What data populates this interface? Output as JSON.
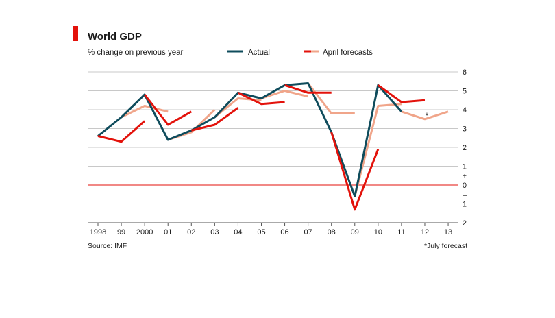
{
  "chart_data": {
    "type": "line",
    "title": "World GDP",
    "subtitle": "% change on previous year",
    "source": "Source: IMF",
    "footnote": "*July forecast",
    "forecast_marker": "*",
    "colors": {
      "actual": "#0f4c5c",
      "april_forecast_old": "#e3120b",
      "april_forecast_new": "#f0a58a",
      "title_accent": "#e3120b",
      "zero_line": "#e3120b",
      "grid": "#c8c8c8"
    },
    "ylim": [
      -2,
      6
    ],
    "y_ticks": [
      {
        "value": 6,
        "label": "6"
      },
      {
        "value": 5,
        "label": "5"
      },
      {
        "value": 4,
        "label": "4"
      },
      {
        "value": 3,
        "label": "3"
      },
      {
        "value": 2,
        "label": "2"
      },
      {
        "value": 1,
        "label": "1"
      },
      {
        "value": 0,
        "label": "0"
      },
      {
        "value": -1,
        "label": "1"
      },
      {
        "value": -2,
        "label": "2"
      }
    ],
    "y_sign_labels": {
      "plus": "+",
      "minus": "–"
    },
    "x_labels": [
      "1998",
      "99",
      "2000",
      "01",
      "02",
      "03",
      "04",
      "05",
      "06",
      "07",
      "08",
      "09",
      "10",
      "11",
      "12",
      "13"
    ],
    "x_values": [
      1998,
      1999,
      2000,
      2001,
      2002,
      2003,
      2004,
      2005,
      2006,
      2007,
      2008,
      2009,
      2010,
      2011,
      2012,
      2013
    ],
    "legend": [
      {
        "label": "Actual",
        "color_key": "actual"
      },
      {
        "label": "April forecasts",
        "color_key": "april_forecast_old"
      }
    ],
    "series_actual": {
      "name": "Actual",
      "x": [
        1998,
        1999,
        2000,
        2001,
        2002,
        2003,
        2004,
        2005,
        2006,
        2007,
        2008,
        2009,
        2010,
        2011
      ],
      "y": [
        2.6,
        3.6,
        4.8,
        2.4,
        2.9,
        3.6,
        4.9,
        4.6,
        5.3,
        5.4,
        2.8,
        -0.6,
        5.3,
        3.9
      ]
    },
    "forecast_segments": [
      {
        "x": [
          1998,
          1999,
          2000
        ],
        "y": [
          2.6,
          2.3,
          3.4
        ],
        "color_key": "april_forecast_old"
      },
      {
        "x": [
          1999,
          2000,
          2001
        ],
        "y": [
          3.6,
          4.2,
          3.9
        ],
        "color_key": "april_forecast_new"
      },
      {
        "x": [
          2000,
          2001,
          2002
        ],
        "y": [
          4.8,
          3.2,
          3.9
        ],
        "color_key": "april_forecast_old"
      },
      {
        "x": [
          2001,
          2002,
          2003
        ],
        "y": [
          2.4,
          2.8,
          4.0
        ],
        "color_key": "april_forecast_new"
      },
      {
        "x": [
          2002,
          2003,
          2004
        ],
        "y": [
          2.9,
          3.2,
          4.1
        ],
        "color_key": "april_forecast_old"
      },
      {
        "x": [
          2003,
          2004,
          2005
        ],
        "y": [
          3.6,
          4.6,
          4.5
        ],
        "color_key": "april_forecast_new"
      },
      {
        "x": [
          2004,
          2005,
          2006
        ],
        "y": [
          4.9,
          4.3,
          4.4
        ],
        "color_key": "april_forecast_old"
      },
      {
        "x": [
          2005,
          2006,
          2007
        ],
        "y": [
          4.6,
          5.0,
          4.7
        ],
        "color_key": "april_forecast_new"
      },
      {
        "x": [
          2006,
          2007,
          2008
        ],
        "y": [
          5.3,
          4.9,
          4.9
        ],
        "color_key": "april_forecast_old"
      },
      {
        "x": [
          2007,
          2008,
          2009
        ],
        "y": [
          5.4,
          3.8,
          3.8
        ],
        "color_key": "april_forecast_new"
      },
      {
        "x": [
          2008,
          2009,
          2010
        ],
        "y": [
          2.8,
          -1.3,
          1.9
        ],
        "color_key": "april_forecast_old"
      },
      {
        "x": [
          2009,
          2010,
          2011
        ],
        "y": [
          -0.6,
          4.2,
          4.3
        ],
        "color_key": "april_forecast_new"
      },
      {
        "x": [
          2010,
          2011,
          2012
        ],
        "y": [
          5.3,
          4.4,
          4.5
        ],
        "color_key": "april_forecast_old"
      },
      {
        "x": [
          2011,
          2012,
          2013
        ],
        "y": [
          3.9,
          3.5,
          3.9
        ],
        "color_key": "april_forecast_new"
      }
    ]
  }
}
